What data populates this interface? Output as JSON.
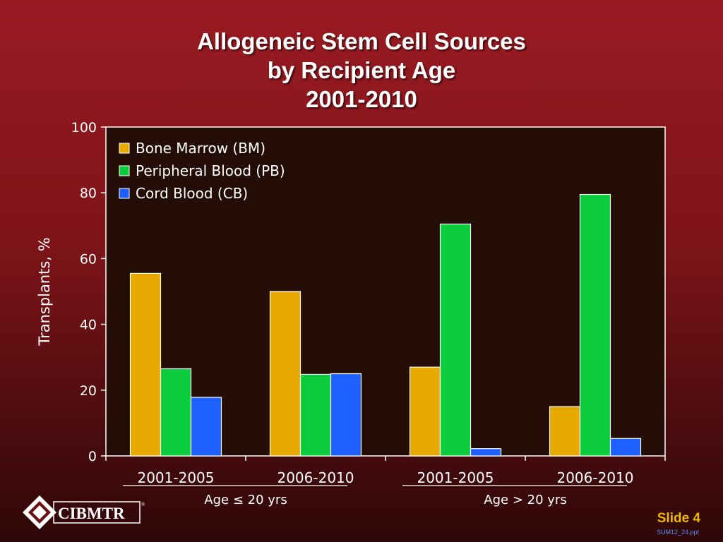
{
  "slide": {
    "title_lines": [
      "Allogeneic Stem Cell Sources",
      "by Recipient Age",
      "2001-2010"
    ],
    "slide_number": "Slide 4",
    "file_ref": "SUM12_24.ppt",
    "logo_text": "CIBMTR",
    "logo_mark": "®"
  },
  "colors": {
    "bm": "#e8a900",
    "pb": "#0acc3c",
    "cb": "#1e5fff",
    "plot_bg": "#240d07"
  },
  "chart_data": {
    "type": "bar",
    "title": "Allogeneic Stem Cell Sources by Recipient Age 2001-2010",
    "ylabel": "Transplants, %",
    "ylim": [
      0,
      100
    ],
    "yticks": [
      0,
      20,
      40,
      60,
      80,
      100
    ],
    "categories": [
      "2001-2005",
      "2006-2010",
      "2001-2005",
      "2006-2010"
    ],
    "groups": [
      {
        "label": "Age ≤ 20 yrs",
        "categories": [
          0,
          1
        ]
      },
      {
        "label": "Age > 20 yrs",
        "categories": [
          2,
          3
        ]
      }
    ],
    "legend_position": "top-left",
    "series": [
      {
        "name": "Bone Marrow (BM)",
        "color": "#e8a900",
        "values": [
          55.5,
          50,
          27,
          15
        ]
      },
      {
        "name": "Peripheral Blood (PB)",
        "color": "#0acc3c",
        "values": [
          26.5,
          24.8,
          70.5,
          79.5
        ]
      },
      {
        "name": "Cord Blood (CB)",
        "color": "#1e5fff",
        "values": [
          17.8,
          25,
          2.2,
          5.3
        ]
      }
    ]
  }
}
